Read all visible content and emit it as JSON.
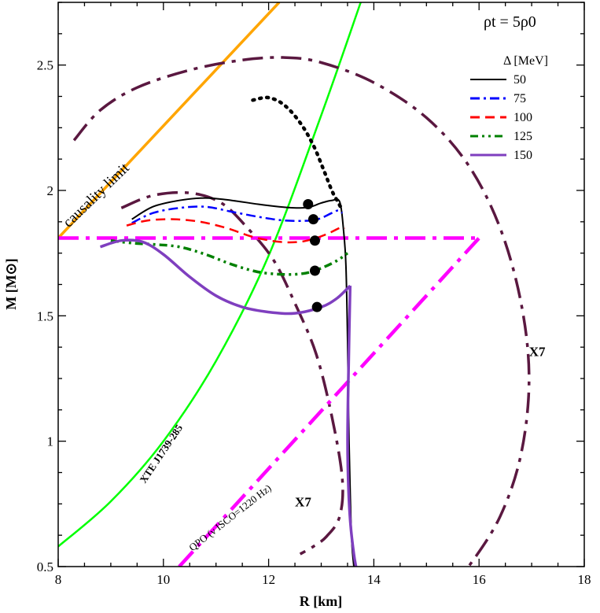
{
  "chart_data": {
    "type": "line",
    "title": "",
    "xlabel": "R [km]",
    "ylabel": "M [M⊙]",
    "xlim": [
      8,
      18
    ],
    "ylim": [
      0.5,
      2.75
    ],
    "x_ticks": [
      "8",
      "10",
      "12",
      "14",
      "16",
      "18"
    ],
    "y_ticks": [
      "0.5",
      "1",
      "1.5",
      "2",
      "2.5"
    ],
    "x_tick_values": [
      8,
      10,
      12,
      14,
      16,
      18
    ],
    "y_tick_values": [
      0.5,
      1,
      1.5,
      2,
      2.5
    ],
    "corner_label": "ρt = 5ρ0",
    "legend": {
      "title": "Δ [MeV]",
      "position": "top-right",
      "entries": [
        {
          "label": "50",
          "color": "#000000",
          "dash": "solid"
        },
        {
          "label": "75",
          "color": "#0000ff",
          "dash": "dash-dot"
        },
        {
          "label": "100",
          "color": "#ff0000",
          "dash": "dashed"
        },
        {
          "label": "125",
          "color": "#008000",
          "dash": "dash-dot-dot"
        },
        {
          "label": "150",
          "color": "#7f3fbf",
          "dash": "solid"
        }
      ]
    },
    "series": [
      {
        "name": "50",
        "color": "#000000",
        "width": 2,
        "dash": "solid",
        "x": [
          9.4,
          9.8,
          10.3,
          10.8,
          11.3,
          11.8,
          12.2,
          12.6,
          12.8,
          13.0,
          13.2,
          13.35,
          13.42,
          13.47,
          13.5,
          13.52,
          13.55,
          13.58,
          13.62
        ],
        "y": [
          1.885,
          1.935,
          1.96,
          1.97,
          1.96,
          1.945,
          1.935,
          1.93,
          1.935,
          1.95,
          1.96,
          1.955,
          1.85,
          1.7,
          1.4,
          1.1,
          0.8,
          0.6,
          0.5
        ]
      },
      {
        "name": "50 (unstable)",
        "color": "#000000",
        "width": 4.5,
        "dash": "dotted",
        "x": [
          11.7,
          12.0,
          12.3,
          12.6,
          12.85,
          13.05,
          13.2,
          13.3,
          13.38
        ],
        "y": [
          2.36,
          2.37,
          2.34,
          2.27,
          2.18,
          2.08,
          2.0,
          1.96,
          1.93
        ]
      },
      {
        "name": "75",
        "color": "#0000ff",
        "width": 2.5,
        "dash": "dash-dot",
        "x": [
          9.4,
          9.8,
          10.3,
          10.8,
          11.3,
          11.8,
          12.3,
          12.8,
          13.0,
          13.2,
          13.32,
          13.4
        ],
        "y": [
          1.87,
          1.91,
          1.93,
          1.935,
          1.915,
          1.895,
          1.88,
          1.88,
          1.89,
          1.91,
          1.92,
          1.91
        ]
      },
      {
        "name": "100",
        "color": "#ff0000",
        "width": 2.5,
        "dash": "dashed",
        "x": [
          9.3,
          9.7,
          10.2,
          10.7,
          11.2,
          11.7,
          12.2,
          12.6,
          12.9,
          13.15,
          13.35,
          13.45
        ],
        "y": [
          1.86,
          1.88,
          1.885,
          1.875,
          1.85,
          1.815,
          1.795,
          1.795,
          1.81,
          1.83,
          1.85,
          1.85
        ]
      },
      {
        "name": "125",
        "color": "#008000",
        "width": 3.5,
        "dash": "dash-dot-dot",
        "x": [
          9.0,
          9.4,
          9.8,
          10.3,
          10.8,
          11.3,
          11.8,
          12.3,
          12.7,
          13.0,
          13.3,
          13.5
        ],
        "y": [
          1.8,
          1.79,
          1.785,
          1.775,
          1.745,
          1.705,
          1.675,
          1.665,
          1.67,
          1.69,
          1.72,
          1.75
        ]
      },
      {
        "name": "150",
        "color": "#7f3fbf",
        "width": 3.5,
        "dash": "solid",
        "x": [
          8.8,
          9.2,
          9.6,
          10.0,
          10.5,
          11.0,
          11.5,
          12.0,
          12.5,
          13.0,
          13.3,
          13.55
        ],
        "y": [
          1.775,
          1.8,
          1.795,
          1.745,
          1.655,
          1.58,
          1.535,
          1.515,
          1.51,
          1.535,
          1.57,
          1.62
        ]
      },
      {
        "name": "150 (descent)",
        "color": "#7f3fbf",
        "width": 3.5,
        "dash": "solid",
        "x": [
          13.55,
          13.52,
          13.5,
          13.52,
          13.56,
          13.62,
          13.66
        ],
        "y": [
          1.62,
          1.3,
          1.0,
          0.8,
          0.66,
          0.55,
          0.5
        ]
      },
      {
        "name": "causality limit",
        "color": "#ffa500",
        "width": 3.5,
        "dash": "solid",
        "x": [
          8.0,
          12.2
        ],
        "y": [
          1.81,
          2.75
        ]
      },
      {
        "name": "XTE J1739-285",
        "color": "#00ff00",
        "width": 2.5,
        "dash": "solid",
        "x": [
          8.0,
          9.0,
          10.0,
          11.0,
          12.0,
          13.0,
          13.75
        ],
        "y": [
          0.58,
          0.76,
          1.0,
          1.32,
          1.74,
          2.3,
          2.75
        ]
      },
      {
        "name": "horizontal constraint",
        "color": "#ff00ff",
        "width": 4.5,
        "dash": "long-dash-dot",
        "x": [
          8.0,
          16.0
        ],
        "y": [
          1.81,
          1.81
        ]
      },
      {
        "name": "QPO",
        "color": "#ff00ff",
        "width": 4.5,
        "dash": "long-dash-dot",
        "x": [
          10.3,
          16.0
        ],
        "y": [
          0.5,
          1.81
        ]
      },
      {
        "name": "X7 (large)",
        "color": "#5a1840",
        "width": 3.5,
        "dash": "long-dash-dot",
        "x": [
          8.3,
          8.8,
          9.5,
          10.5,
          11.5,
          12.3,
          13.0,
          14.0,
          15.0,
          15.8,
          16.4,
          16.8,
          16.95,
          16.8,
          16.4,
          15.8,
          15.2
        ],
        "y": [
          2.2,
          2.32,
          2.41,
          2.48,
          2.52,
          2.53,
          2.51,
          2.43,
          2.29,
          2.1,
          1.85,
          1.55,
          1.25,
          0.95,
          0.7,
          0.5,
          0.35
        ]
      },
      {
        "name": "X7 (small)",
        "color": "#5a1840",
        "width": 3.5,
        "dash": "long-dash-dot",
        "x": [
          9.2,
          9.8,
          10.5,
          11.1,
          11.6,
          12.1,
          12.5,
          12.9,
          13.2,
          13.4,
          13.35,
          13.1,
          12.85,
          12.6
        ],
        "y": [
          1.93,
          1.98,
          1.99,
          1.95,
          1.85,
          1.72,
          1.55,
          1.35,
          1.1,
          0.85,
          0.7,
          0.62,
          0.58,
          0.55
        ]
      }
    ],
    "markers": [
      {
        "x": 12.75,
        "y": 1.945
      },
      {
        "x": 12.85,
        "y": 1.885
      },
      {
        "x": 12.88,
        "y": 1.8
      },
      {
        "x": 12.88,
        "y": 1.68
      },
      {
        "x": 12.92,
        "y": 1.535
      }
    ],
    "annotations": [
      {
        "text": "causality limit",
        "x": 8.2,
        "y": 1.85,
        "angle": -44,
        "size": 19,
        "bold": false
      },
      {
        "text": "XTE J1739-285",
        "x": 9.65,
        "y": 0.83,
        "angle": -56,
        "size": 13,
        "bold": true
      },
      {
        "text": "QPO (ν ISCO=1220 Hz)",
        "x": 10.55,
        "y": 0.56,
        "angle": -38,
        "size": 13,
        "bold": false
      },
      {
        "text": "X7",
        "x": 12.5,
        "y": 0.74,
        "angle": 0,
        "size": 17,
        "bold": true
      },
      {
        "text": "X7",
        "x": 16.95,
        "y": 1.34,
        "angle": 0,
        "size": 17,
        "bold": true
      }
    ]
  }
}
